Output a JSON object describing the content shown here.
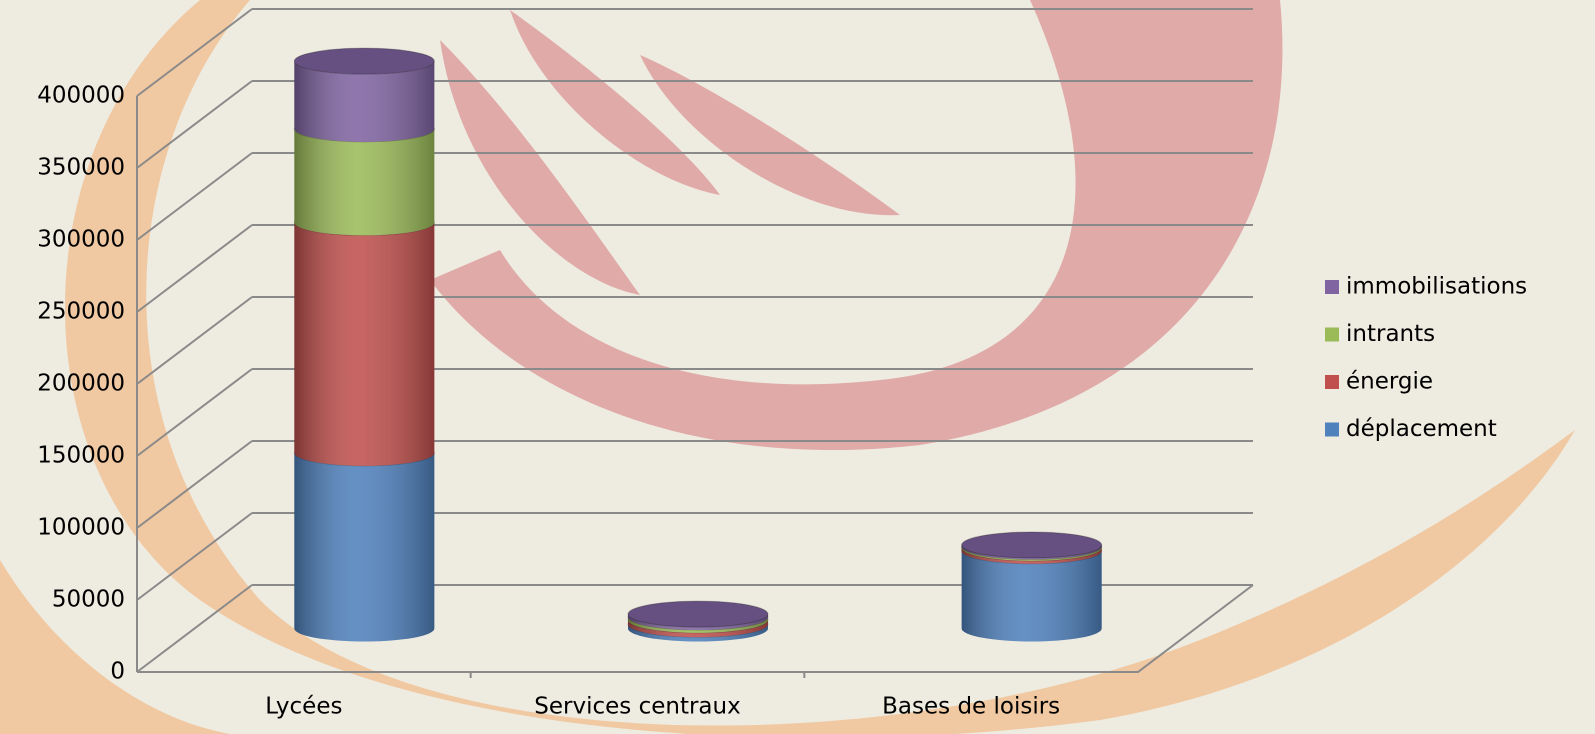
{
  "chart_data": {
    "type": "bar3d-cylinder-stacked",
    "categories": [
      "Lycées",
      "Services centraux",
      "Bases de loisirs"
    ],
    "series": [
      {
        "name": "déplacement",
        "color": "#4f81bd",
        "values": [
          122000,
          3000,
          54000
        ]
      },
      {
        "name": "énergie",
        "color": "#c0504d",
        "values": [
          160000,
          3000,
          2000
        ]
      },
      {
        "name": "intrants",
        "color": "#9bbb59",
        "values": [
          65000,
          2000,
          1000
        ]
      },
      {
        "name": "immobilisations",
        "color": "#8064a2",
        "values": [
          47000,
          2000,
          1000
        ]
      }
    ],
    "ylim": [
      0,
      400000
    ],
    "yticks": [
      0,
      50000,
      100000,
      150000,
      200000,
      250000,
      300000,
      350000,
      400000
    ],
    "grid": true,
    "legend": "right"
  }
}
